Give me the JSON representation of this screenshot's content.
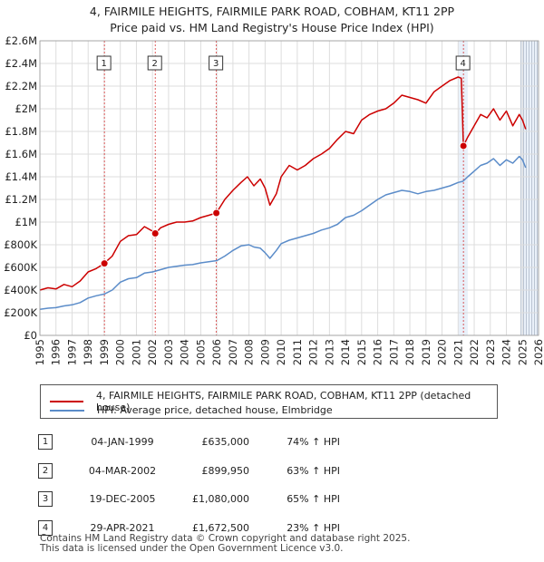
{
  "title": {
    "line1": "4, FAIRMILE HEIGHTS, FAIRMILE PARK ROAD, COBHAM, KT11 2PP",
    "line2": "Price paid vs. HM Land Registry's House Price Index (HPI)"
  },
  "colors": {
    "property": "#cc0000",
    "hpi": "#5b8cc9",
    "marker": "#cc0000",
    "shade": "#dbe6f5"
  },
  "chart_data": {
    "type": "line",
    "title": "4, FAIRMILE HEIGHTS, FAIRMILE PARK ROAD, COBHAM, KT11 2PP",
    "xlim": [
      1995,
      2026
    ],
    "ylim": [
      0,
      2600000
    ],
    "x_ticks": [
      "1995",
      "1996",
      "1997",
      "1998",
      "1999",
      "2000",
      "2001",
      "2002",
      "2003",
      "2004",
      "2005",
      "2006",
      "2007",
      "2008",
      "2009",
      "2010",
      "2011",
      "2012",
      "2013",
      "2014",
      "2015",
      "2016",
      "2017",
      "2018",
      "2019",
      "2020",
      "2021",
      "2022",
      "2023",
      "2024",
      "2025",
      "2026"
    ],
    "y_ticks": [
      {
        "value": 0,
        "label": "£0"
      },
      {
        "value": 200000,
        "label": "£200K"
      },
      {
        "value": 400000,
        "label": "£400K"
      },
      {
        "value": 600000,
        "label": "£600K"
      },
      {
        "value": 800000,
        "label": "£800K"
      },
      {
        "value": 1000000,
        "label": "£1M"
      },
      {
        "value": 1200000,
        "label": "£1.2M"
      },
      {
        "value": 1400000,
        "label": "£1.4M"
      },
      {
        "value": 1600000,
        "label": "£1.6M"
      },
      {
        "value": 1800000,
        "label": "£1.8M"
      },
      {
        "value": 2000000,
        "label": "£2M"
      },
      {
        "value": 2200000,
        "label": "£2.2M"
      },
      {
        "value": 2400000,
        "label": "£2.4M"
      },
      {
        "value": 2600000,
        "label": "£2.6M"
      }
    ],
    "series": [
      {
        "name": "4, FAIRMILE HEIGHTS, FAIRMILE PARK ROAD, COBHAM, KT11 2PP (detached house)",
        "x": [
          1995.0,
          1995.5,
          1996.0,
          1996.5,
          1997.0,
          1997.5,
          1998.0,
          1998.5,
          1999.0,
          1999.5,
          2000.0,
          2000.5,
          2001.0,
          2001.5,
          2002.0,
          2002.2,
          2002.5,
          2003.0,
          2003.5,
          2004.0,
          2004.5,
          2005.0,
          2005.5,
          2005.97,
          2006.5,
          2007.0,
          2007.5,
          2007.9,
          2008.3,
          2008.7,
          2009.0,
          2009.3,
          2009.7,
          2010.0,
          2010.5,
          2011.0,
          2011.5,
          2012.0,
          2012.5,
          2013.0,
          2013.5,
          2014.0,
          2014.5,
          2015.0,
          2015.5,
          2016.0,
          2016.5,
          2017.0,
          2017.5,
          2018.0,
          2018.5,
          2019.0,
          2019.5,
          2020.0,
          2020.5,
          2021.0,
          2021.2,
          2021.33,
          2021.6,
          2022.0,
          2022.4,
          2022.8,
          2023.2,
          2023.6,
          2024.0,
          2024.4,
          2024.8,
          2025.0,
          2025.2
        ],
        "y": [
          400000,
          420000,
          410000,
          450000,
          430000,
          480000,
          560000,
          590000,
          635000,
          700000,
          830000,
          880000,
          890000,
          960000,
          920000,
          899950,
          950000,
          980000,
          1000000,
          1000000,
          1010000,
          1040000,
          1060000,
          1080000,
          1200000,
          1280000,
          1350000,
          1400000,
          1320000,
          1380000,
          1300000,
          1150000,
          1250000,
          1400000,
          1500000,
          1460000,
          1500000,
          1560000,
          1600000,
          1650000,
          1730000,
          1800000,
          1780000,
          1900000,
          1950000,
          1980000,
          2000000,
          2050000,
          2120000,
          2100000,
          2080000,
          2050000,
          2150000,
          2200000,
          2250000,
          2280000,
          2270000,
          1672500,
          1750000,
          1850000,
          1950000,
          1920000,
          2000000,
          1900000,
          1980000,
          1850000,
          1950000,
          1900000,
          1820000
        ]
      },
      {
        "name": "HPI: Average price, detached house, Elmbridge",
        "x": [
          1995.0,
          1995.5,
          1996.0,
          1996.5,
          1997.0,
          1997.5,
          1998.0,
          1998.5,
          1999.0,
          1999.5,
          2000.0,
          2000.5,
          2001.0,
          2001.5,
          2002.0,
          2002.5,
          2003.0,
          2003.5,
          2004.0,
          2004.5,
          2005.0,
          2005.5,
          2006.0,
          2006.5,
          2007.0,
          2007.5,
          2008.0,
          2008.3,
          2008.7,
          2009.0,
          2009.3,
          2009.7,
          2010.0,
          2010.5,
          2011.0,
          2011.5,
          2012.0,
          2012.5,
          2013.0,
          2013.5,
          2014.0,
          2014.5,
          2015.0,
          2015.5,
          2016.0,
          2016.5,
          2017.0,
          2017.5,
          2018.0,
          2018.5,
          2019.0,
          2019.5,
          2020.0,
          2020.5,
          2021.0,
          2021.3,
          2021.6,
          2022.0,
          2022.4,
          2022.8,
          2023.2,
          2023.6,
          2024.0,
          2024.4,
          2024.8,
          2025.0,
          2025.2
        ],
        "y": [
          230000,
          240000,
          245000,
          260000,
          270000,
          290000,
          330000,
          350000,
          365000,
          400000,
          470000,
          500000,
          510000,
          550000,
          560000,
          580000,
          600000,
          610000,
          620000,
          625000,
          640000,
          650000,
          660000,
          700000,
          750000,
          790000,
          800000,
          780000,
          770000,
          730000,
          680000,
          750000,
          810000,
          840000,
          860000,
          880000,
          900000,
          930000,
          950000,
          980000,
          1040000,
          1060000,
          1100000,
          1150000,
          1200000,
          1240000,
          1260000,
          1280000,
          1270000,
          1250000,
          1270000,
          1280000,
          1300000,
          1320000,
          1350000,
          1360000,
          1400000,
          1450000,
          1500000,
          1520000,
          1560000,
          1500000,
          1550000,
          1520000,
          1580000,
          1550000,
          1480000
        ]
      }
    ],
    "sales": [
      {
        "num": "1",
        "x": 1999.01,
        "y": 635000
      },
      {
        "num": "2",
        "x": 2002.17,
        "y": 899950
      },
      {
        "num": "3",
        "x": 2005.97,
        "y": 1080000
      },
      {
        "num": "4",
        "x": 2021.33,
        "y": 1672500
      }
    ],
    "shaded_ranges": [
      [
        2021.0,
        2021.6
      ],
      [
        2024.9,
        2026
      ]
    ]
  },
  "legend": {
    "property_label": "4, FAIRMILE HEIGHTS, FAIRMILE PARK ROAD, COBHAM, KT11 2PP (detached house)",
    "hpi_label": "HPI: Average price, detached house, Elmbridge"
  },
  "sales_table": [
    {
      "num": "1",
      "date": "04-JAN-1999",
      "price": "£635,000",
      "hpi": "74% ↑ HPI"
    },
    {
      "num": "2",
      "date": "04-MAR-2002",
      "price": "£899,950",
      "hpi": "63% ↑ HPI"
    },
    {
      "num": "3",
      "date": "19-DEC-2005",
      "price": "£1,080,000",
      "hpi": "65% ↑ HPI"
    },
    {
      "num": "4",
      "date": "29-APR-2021",
      "price": "£1,672,500",
      "hpi": "23% ↑ HPI"
    }
  ],
  "footer": {
    "line1": "Contains HM Land Registry data © Crown copyright and database right 2025.",
    "line2": "This data is licensed under the Open Government Licence v3.0."
  }
}
